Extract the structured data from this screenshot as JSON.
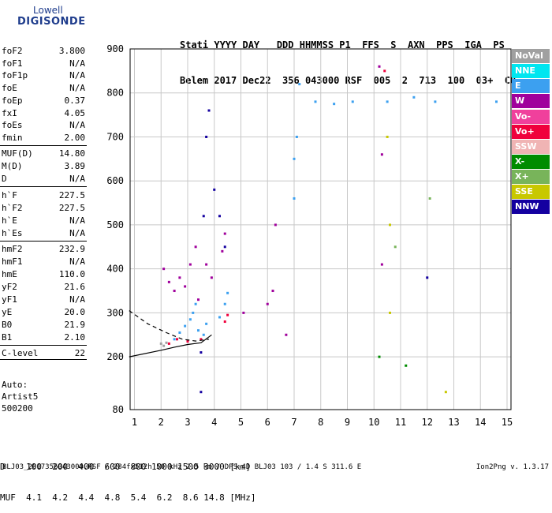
{
  "logo": {
    "line1": "Lowell",
    "line2": "DIGISONDE"
  },
  "header": {
    "line1": "Stati YYYY DAY   DDD HHMMSS P1  FFS  S  AXN  PPS  IGA  PS",
    "line2": "Belem 2017 Dec22  356 043000 RSF  005  2  713  100  03+  C0"
  },
  "params": [
    {
      "key": "foF2",
      "value": "3.800"
    },
    {
      "key": "foF1",
      "value": "N/A"
    },
    {
      "key": "foF1p",
      "value": "N/A"
    },
    {
      "key": "foE",
      "value": "N/A"
    },
    {
      "key": "foEp",
      "value": "0.37"
    },
    {
      "key": "fxI",
      "value": "4.05"
    },
    {
      "key": "foEs",
      "value": "N/A"
    },
    {
      "key": "fmin",
      "value": "2.00"
    },
    {
      "key": "MUF(D)",
      "value": "14.80"
    },
    {
      "key": "M(D)",
      "value": "3.89"
    },
    {
      "key": "D",
      "value": "N/A"
    },
    {
      "key": "h`F",
      "value": "227.5"
    },
    {
      "key": "h`F2",
      "value": "227.5"
    },
    {
      "key": "h`E",
      "value": "N/A"
    },
    {
      "key": "h`Es",
      "value": "N/A"
    },
    {
      "key": "hmF2",
      "value": "232.9"
    },
    {
      "key": "hmF1",
      "value": "N/A"
    },
    {
      "key": "hmE",
      "value": "110.0"
    },
    {
      "key": "yF2",
      "value": "21.6"
    },
    {
      "key": "yF1",
      "value": "N/A"
    },
    {
      "key": "yE",
      "value": "20.0"
    },
    {
      "key": "B0",
      "value": "21.9"
    },
    {
      "key": "B1",
      "value": "2.10"
    },
    {
      "key": "C-level",
      "value": "22"
    }
  ],
  "auto": {
    "line1": "Auto:",
    "line2": "Artist5",
    "line3": "500200"
  },
  "legend": [
    {
      "label": "NoVal",
      "color": "#a0a0a0"
    },
    {
      "label": "NNE",
      "color": "#00e6f0"
    },
    {
      "label": "E",
      "color": "#3ca0f0"
    },
    {
      "label": "W",
      "color": "#a0009c"
    },
    {
      "label": "Vo-",
      "color": "#f0409c"
    },
    {
      "label": "Vo+",
      "color": "#f0003c"
    },
    {
      "label": "SSW",
      "color": "#f0b4b4"
    },
    {
      "label": "X-",
      "color": "#008c00"
    },
    {
      "label": "X+",
      "color": "#78b45a"
    },
    {
      "label": "SSE",
      "color": "#c8c800"
    },
    {
      "label": "NNW",
      "color": "#1400a0"
    }
  ],
  "dmuf": {
    "d_line": "D    100  200  400  600  800 1000 1500 3000 [km]",
    "muf_line": "MUF  4.1  4.2  4.4  4.8  5.4  6.2  8.6 14.8 [MHz]"
  },
  "footer": {
    "left": "BLJ03_2017356043000.RSF / 284fx512h 50 kHz 2.5 km / DPS-4D BLJ03 103 / 1.4 S 311.6 E",
    "right": "Ion2Png v. 1.3.17"
  },
  "chart_data": {
    "type": "scatter",
    "title": "",
    "xlabel": "",
    "ylabel": "",
    "xlim": [
      0.8,
      15
    ],
    "ylim": [
      80,
      900
    ],
    "x_ticks": [
      1,
      2,
      3,
      4,
      5,
      6,
      7,
      8,
      9,
      10,
      11,
      12,
      13,
      14,
      15
    ],
    "y_ticks": [
      200,
      300,
      400,
      500,
      600,
      700,
      800,
      900
    ],
    "y_tick_labels": [
      "200",
      "300",
      "400",
      "500",
      "600",
      "700",
      "800",
      "900"
    ],
    "y_bottom_label": "80",
    "grid": true,
    "series": [
      {
        "name": "E",
        "color": "#3ca0f0",
        "points": [
          [
            2.5,
            240
          ],
          [
            2.7,
            255
          ],
          [
            2.9,
            270
          ],
          [
            3.1,
            285
          ],
          [
            3.2,
            300
          ],
          [
            3.3,
            320
          ],
          [
            3.4,
            260
          ],
          [
            3.6,
            250
          ],
          [
            3.7,
            275
          ],
          [
            4.2,
            290
          ],
          [
            4.4,
            320
          ],
          [
            4.5,
            345
          ],
          [
            7.0,
            560
          ],
          [
            7.0,
            650
          ],
          [
            7.1,
            700
          ],
          [
            7.2,
            820
          ],
          [
            7.8,
            780
          ],
          [
            8.5,
            775
          ],
          [
            9.2,
            780
          ],
          [
            10.5,
            780
          ],
          [
            11.5,
            790
          ],
          [
            12.3,
            780
          ],
          [
            14.6,
            780
          ]
        ]
      },
      {
        "name": "W",
        "color": "#a0009c",
        "points": [
          [
            2.1,
            400
          ],
          [
            2.3,
            370
          ],
          [
            2.5,
            350
          ],
          [
            2.7,
            380
          ],
          [
            2.9,
            360
          ],
          [
            3.1,
            410
          ],
          [
            3.3,
            450
          ],
          [
            3.4,
            330
          ],
          [
            3.7,
            410
          ],
          [
            3.9,
            380
          ],
          [
            4.3,
            440
          ],
          [
            4.4,
            480
          ],
          [
            5.1,
            300
          ],
          [
            6.0,
            320
          ],
          [
            6.2,
            350
          ],
          [
            6.3,
            500
          ],
          [
            6.7,
            250
          ],
          [
            10.3,
            410
          ],
          [
            10.3,
            660
          ],
          [
            10.2,
            860
          ]
        ]
      },
      {
        "name": "Vo+",
        "color": "#f0003c",
        "points": [
          [
            2.3,
            230
          ],
          [
            2.6,
            240
          ],
          [
            3.0,
            235
          ],
          [
            3.5,
            240
          ],
          [
            4.4,
            280
          ],
          [
            4.5,
            295
          ],
          [
            10.4,
            850
          ]
        ]
      },
      {
        "name": "NNW",
        "color": "#1400a0",
        "points": [
          [
            3.5,
            120
          ],
          [
            3.5,
            210
          ],
          [
            3.6,
            520
          ],
          [
            3.7,
            700
          ],
          [
            3.8,
            760
          ],
          [
            4.0,
            580
          ],
          [
            4.2,
            520
          ],
          [
            4.4,
            450
          ],
          [
            12.0,
            380
          ]
        ]
      },
      {
        "name": "SSE",
        "color": "#c8c800",
        "points": [
          [
            10.5,
            700
          ],
          [
            10.6,
            500
          ],
          [
            10.6,
            300
          ],
          [
            12.7,
            120
          ]
        ]
      },
      {
        "name": "NoVal",
        "color": "#a0a0a0",
        "points": [
          [
            2.0,
            230
          ],
          [
            2.1,
            225
          ],
          [
            2.2,
            232
          ]
        ]
      },
      {
        "name": "X-",
        "color": "#008c00",
        "points": [
          [
            10.2,
            200
          ],
          [
            11.2,
            180
          ]
        ]
      },
      {
        "name": "X+",
        "color": "#78b45a",
        "points": [
          [
            10.8,
            450
          ],
          [
            12.1,
            560
          ]
        ]
      }
    ],
    "profile_lines": [
      {
        "style": "solid",
        "points": [
          [
            0.8,
            200
          ],
          [
            2.0,
            215
          ],
          [
            2.5,
            222
          ],
          [
            3.0,
            228
          ],
          [
            3.5,
            232
          ],
          [
            3.9,
            250
          ]
        ]
      },
      {
        "style": "dashed",
        "points": [
          [
            0.8,
            305
          ],
          [
            1.5,
            275
          ],
          [
            2.2,
            255
          ],
          [
            2.8,
            240
          ],
          [
            3.3,
            236
          ],
          [
            3.8,
            240
          ]
        ]
      }
    ]
  }
}
